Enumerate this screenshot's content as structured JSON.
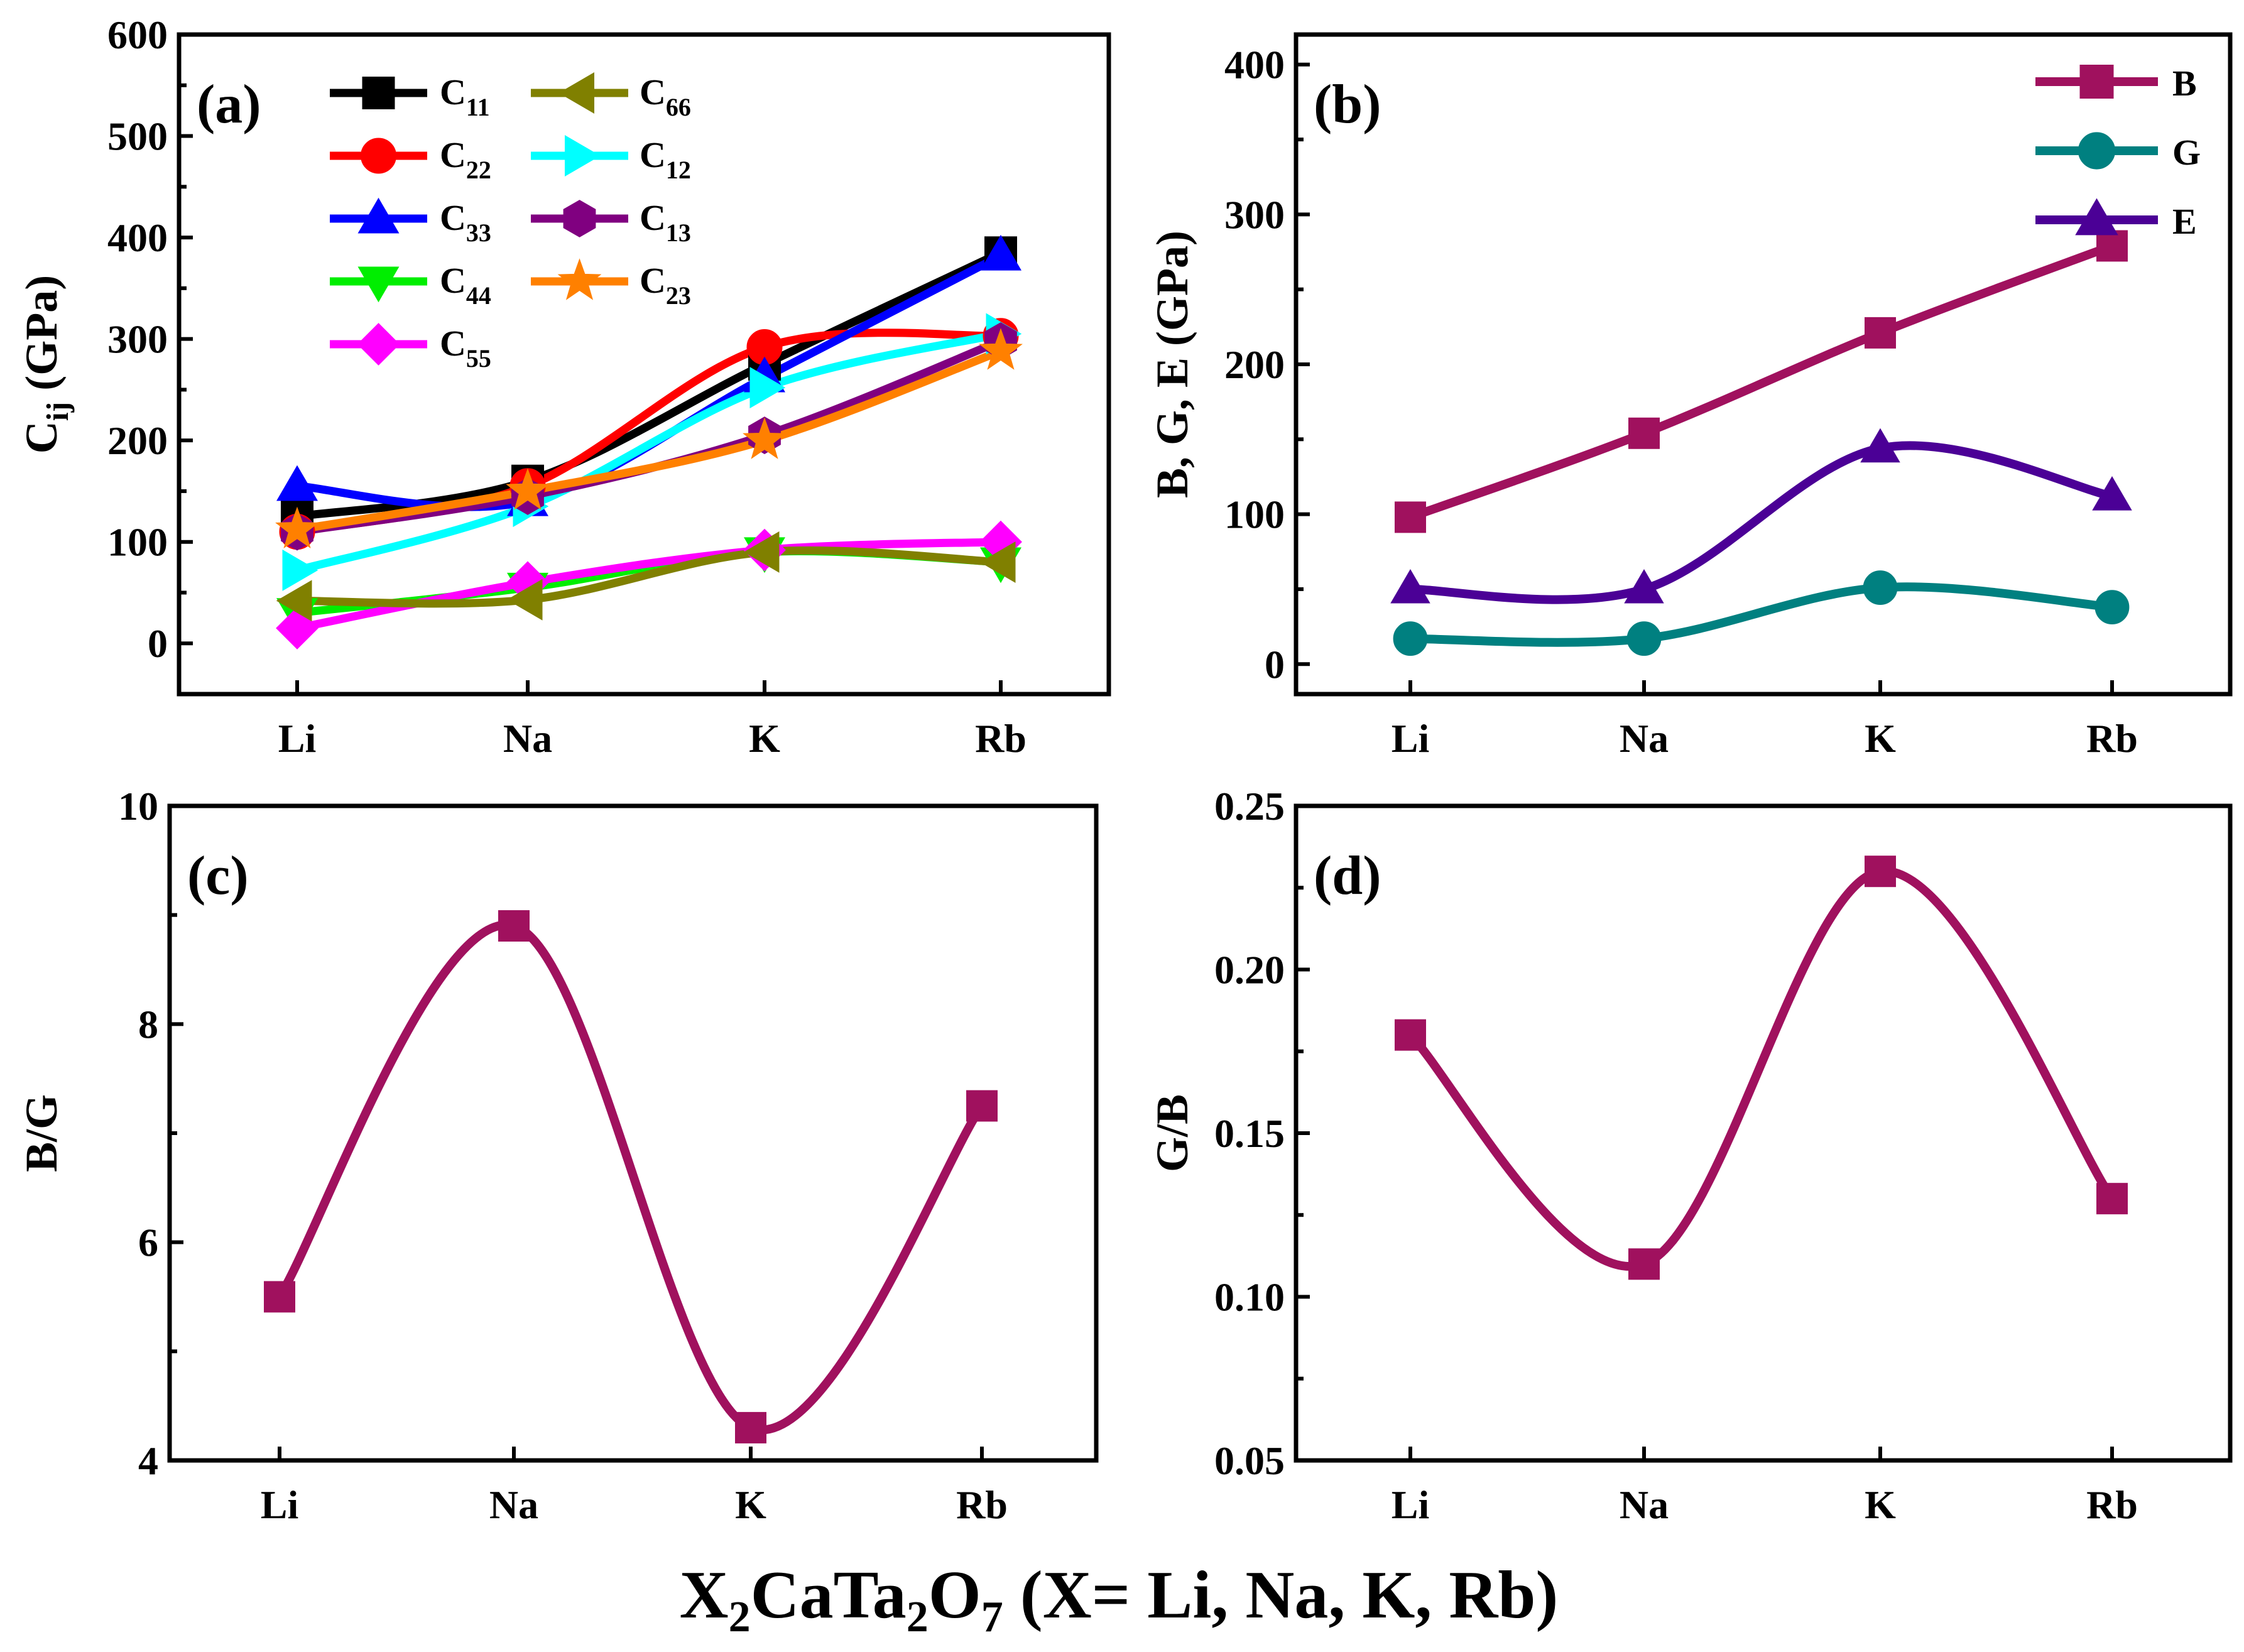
{
  "global_xlabel": {
    "main": "X",
    "s1": "2",
    "mid": "CaTa",
    "s2": "2",
    "o": "O",
    "s3": "7",
    "tail": " (X= Li, Na, K, Rb)"
  },
  "chart_data": [
    {
      "id": "a",
      "panel_label": "(a)",
      "type": "line",
      "title": "",
      "categories": [
        "Li",
        "Na",
        "K",
        "Rb"
      ],
      "ylabel": "C",
      "ylabel_sub": "ij",
      "ylabel_tail": " (GPa)",
      "ylim": [
        -50,
        600
      ],
      "yticks": [
        0,
        100,
        200,
        300,
        400,
        500,
        600
      ],
      "smooth": true,
      "legend_position": "top-left",
      "series": [
        {
          "name": "C",
          "sub": "11",
          "color": "#000000",
          "marker": "square",
          "values": [
            125,
            160,
            275,
            385
          ]
        },
        {
          "name": "C",
          "sub": "22",
          "color": "#ff0000",
          "marker": "circle",
          "values": [
            110,
            155,
            292,
            303
          ]
        },
        {
          "name": "C",
          "sub": "33",
          "color": "#0000ff",
          "marker": "triangle-up",
          "values": [
            155,
            140,
            262,
            382
          ]
        },
        {
          "name": "C",
          "sub": "44",
          "color": "#00ee00",
          "marker": "triangle-down",
          "values": [
            30,
            55,
            90,
            80
          ]
        },
        {
          "name": "C",
          "sub": "55",
          "color": "#ff00ff",
          "marker": "diamond",
          "values": [
            15,
            60,
            92,
            100
          ]
        },
        {
          "name": "C",
          "sub": "66",
          "color": "#808000",
          "marker": "triangle-left",
          "values": [
            42,
            43,
            90,
            80
          ]
        },
        {
          "name": "C",
          "sub": "12",
          "color": "#00ffff",
          "marker": "triangle-right",
          "values": [
            72,
            135,
            252,
            305
          ]
        },
        {
          "name": "C",
          "sub": "13",
          "color": "#800080",
          "marker": "hexagon",
          "values": [
            110,
            145,
            205,
            298
          ]
        },
        {
          "name": "C",
          "sub": "23",
          "color": "#ff8000",
          "marker": "star",
          "values": [
            112,
            150,
            200,
            288
          ]
        }
      ]
    },
    {
      "id": "b",
      "panel_label": "(b)",
      "type": "line",
      "title": "",
      "categories": [
        "Li",
        "Na",
        "K",
        "Rb"
      ],
      "ylabel": "B, G, E (GPa)",
      "ylabel_sub": "",
      "ylabel_tail": "",
      "ylim": [
        -20,
        420
      ],
      "yticks": [
        0,
        100,
        200,
        300,
        400
      ],
      "smooth": true,
      "legend_position": "top-right",
      "series": [
        {
          "name": "B",
          "sub": "",
          "color": "#a0115e",
          "marker": "square",
          "values": [
            98,
            154,
            221,
            279
          ]
        },
        {
          "name": "G",
          "sub": "",
          "color": "#008080",
          "marker": "circle",
          "values": [
            17,
            17,
            51,
            38
          ]
        },
        {
          "name": "E",
          "sub": "",
          "color": "#4b0096",
          "marker": "triangle-up",
          "values": [
            50,
            50,
            144,
            112
          ]
        }
      ]
    },
    {
      "id": "c",
      "panel_label": "(c)",
      "type": "line",
      "title": "",
      "categories": [
        "Li",
        "Na",
        "K",
        "Rb"
      ],
      "ylabel": "B/G",
      "ylabel_sub": "",
      "ylabel_tail": "",
      "ylim": [
        4,
        10
      ],
      "yticks": [
        4,
        6,
        8,
        10
      ],
      "smooth": true,
      "legend_position": "none",
      "series": [
        {
          "name": "B/G",
          "sub": "",
          "color": "#a0115e",
          "marker": "square",
          "values": [
            5.5,
            8.9,
            4.3,
            7.25
          ]
        }
      ]
    },
    {
      "id": "d",
      "panel_label": "(d)",
      "type": "line",
      "title": "",
      "categories": [
        "Li",
        "Na",
        "K",
        "Rb"
      ],
      "ylabel": "G/B",
      "ylabel_sub": "",
      "ylabel_tail": "",
      "ylim": [
        0.05,
        0.25
      ],
      "yticks": [
        0.05,
        0.1,
        0.15,
        0.2,
        0.25
      ],
      "ytick_labels": [
        "0.05",
        "0.10",
        "0.15",
        "0.20",
        "0.25"
      ],
      "smooth": true,
      "legend_position": "none",
      "series": [
        {
          "name": "G/B",
          "sub": "",
          "color": "#a0115e",
          "marker": "square",
          "values": [
            0.18,
            0.11,
            0.23,
            0.13
          ]
        }
      ]
    }
  ]
}
